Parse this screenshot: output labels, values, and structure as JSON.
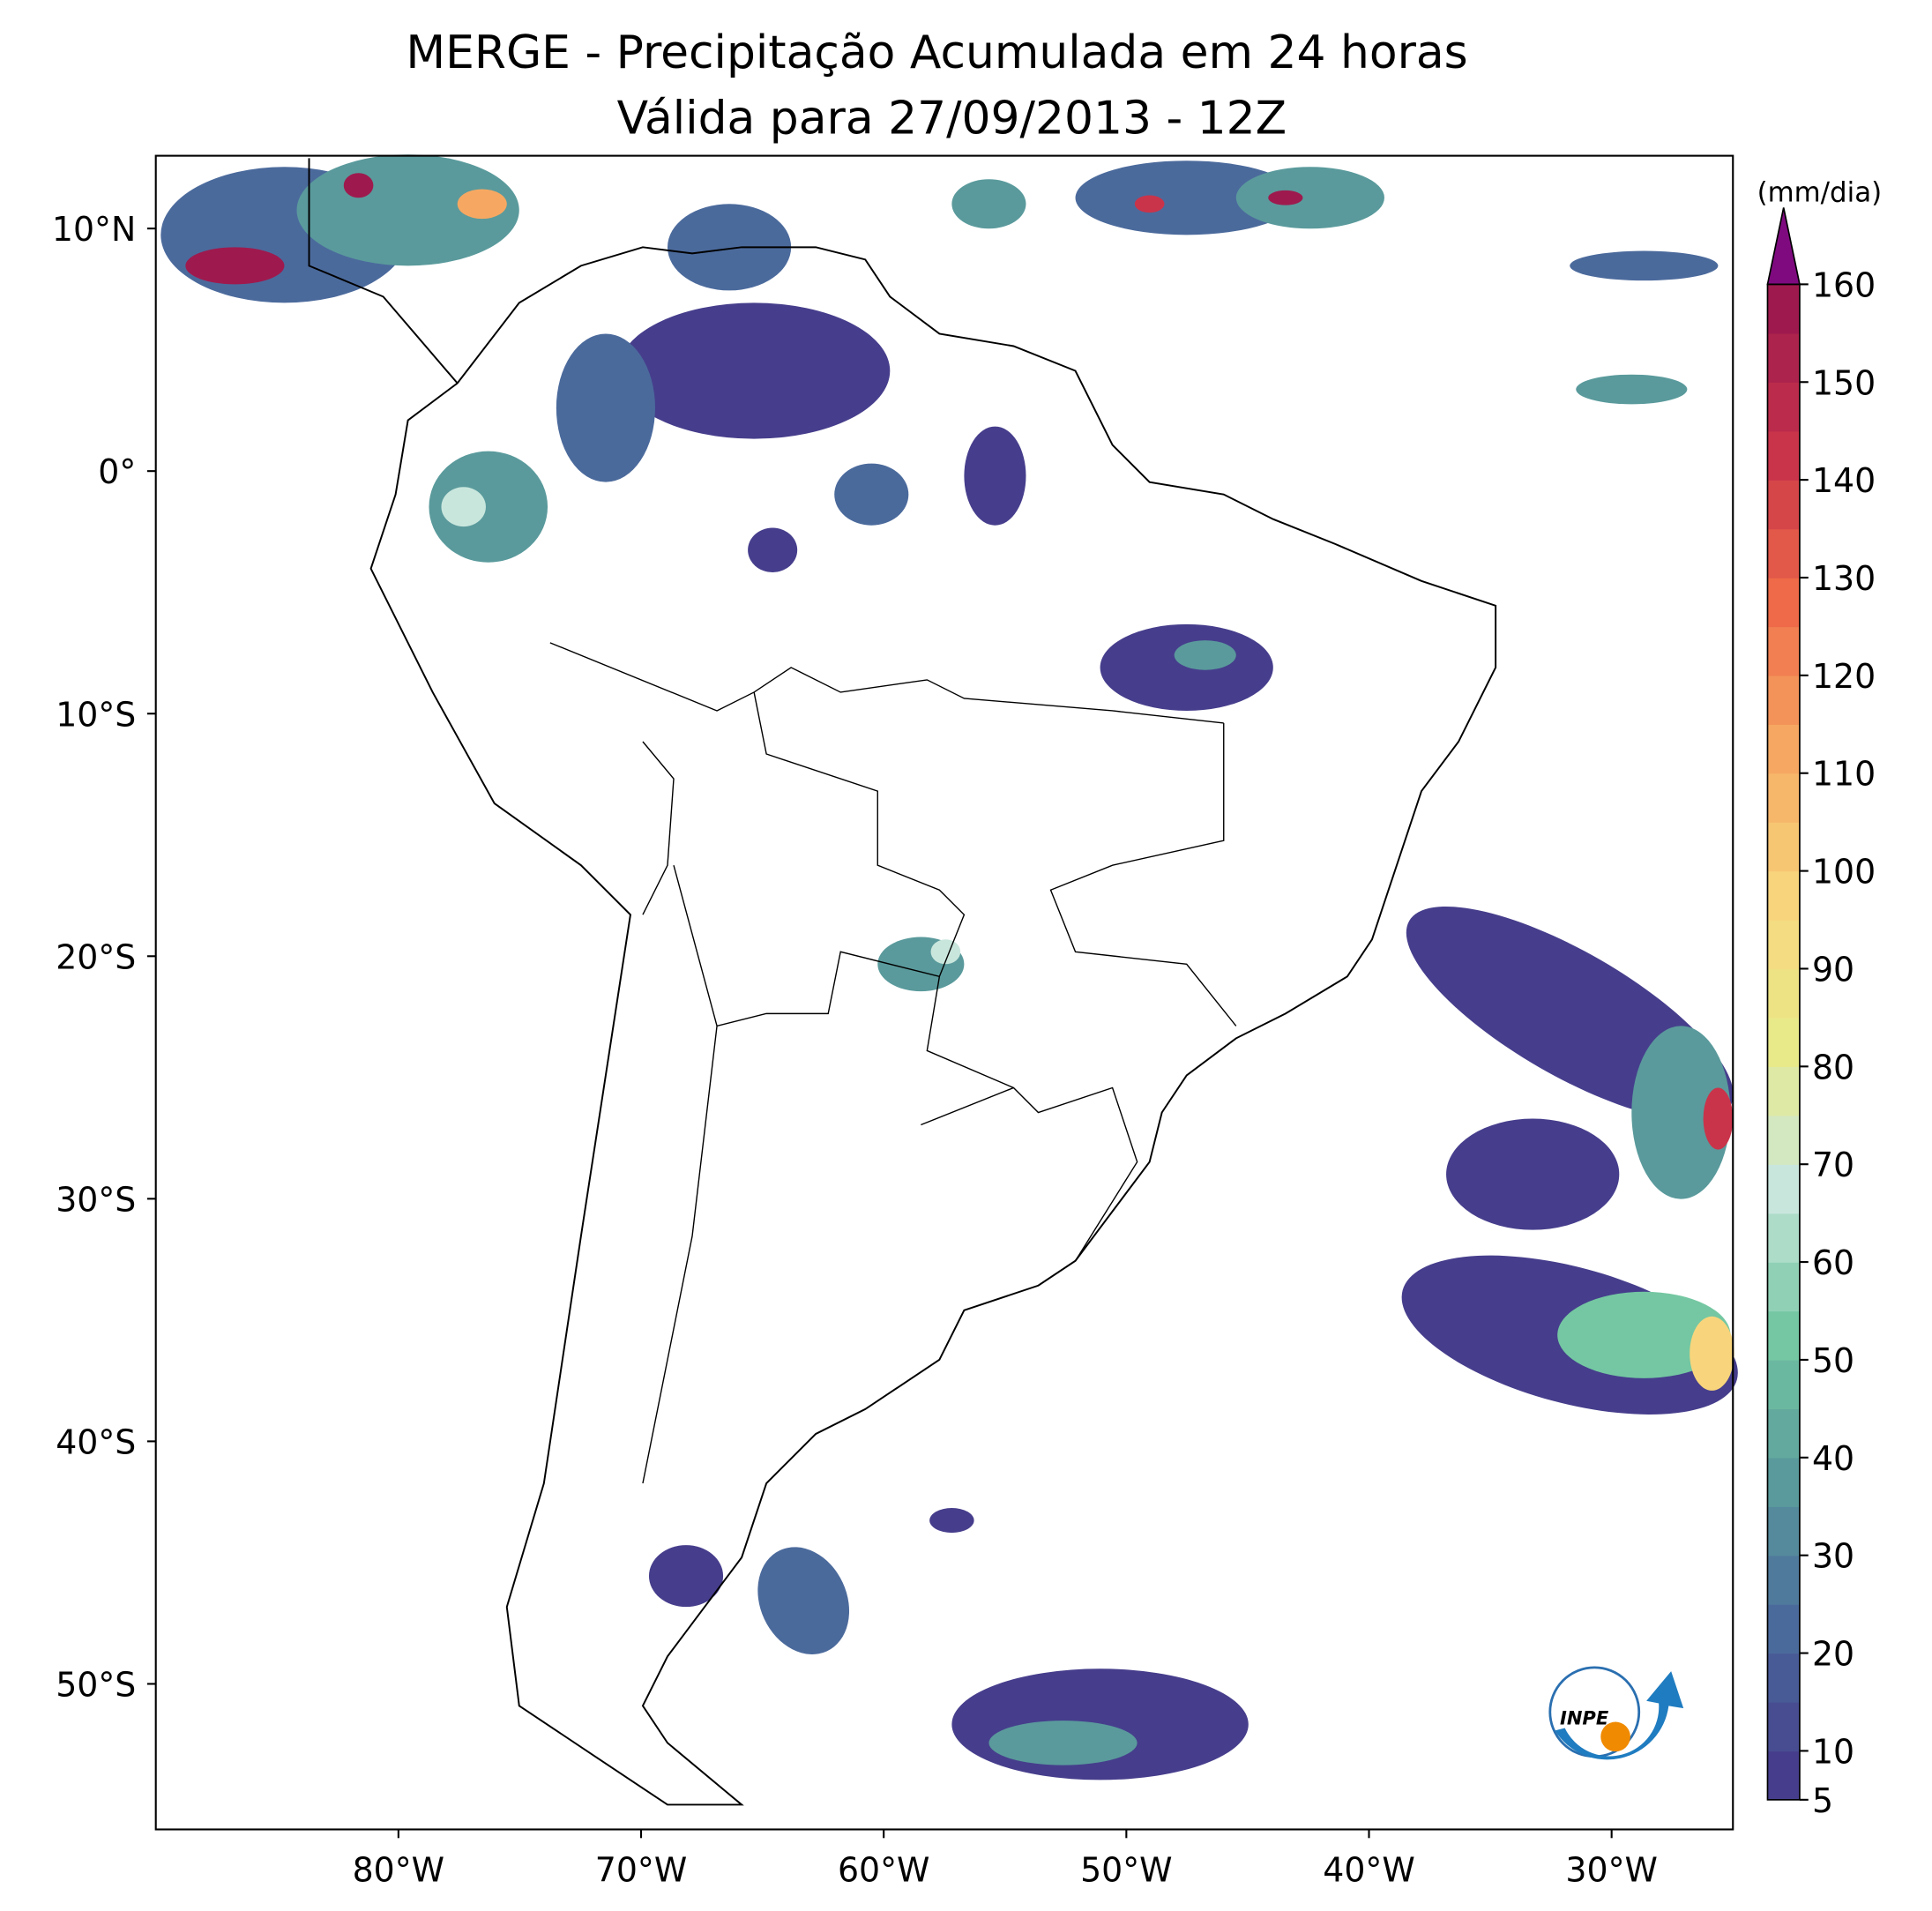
{
  "map": {
    "title": "MERGE - Precipitação Acumulada em 24 horas",
    "subtitle": "Válida para 27/09/2013 - 12Z",
    "xlim": [
      -90,
      -25
    ],
    "ylim": [
      -56,
      13
    ],
    "xticks": [
      {
        "value": -80,
        "label": "80°W"
      },
      {
        "value": -70,
        "label": "70°W"
      },
      {
        "value": -60,
        "label": "60°W"
      },
      {
        "value": -50,
        "label": "50°W"
      },
      {
        "value": -40,
        "label": "40°W"
      },
      {
        "value": -30,
        "label": "30°W"
      }
    ],
    "yticks": [
      {
        "value": 10,
        "label": "10°N"
      },
      {
        "value": 0,
        "label": "0°"
      },
      {
        "value": -10,
        "label": "10°S"
      },
      {
        "value": -20,
        "label": "20°S"
      },
      {
        "value": -30,
        "label": "30°S"
      },
      {
        "value": -40,
        "label": "40°S"
      },
      {
        "value": -50,
        "label": "50°S"
      }
    ],
    "colorbar": {
      "label": "(mm/dia)",
      "lim": [
        5,
        160
      ],
      "ticks": [
        5,
        10,
        20,
        30,
        40,
        50,
        60,
        70,
        80,
        90,
        100,
        110,
        120,
        130,
        140,
        150,
        160
      ],
      "levels": [
        5,
        10,
        15,
        20,
        25,
        30,
        35,
        40,
        45,
        50,
        55,
        60,
        65,
        70,
        75,
        80,
        85,
        90,
        95,
        100,
        105,
        110,
        115,
        120,
        125,
        130,
        135,
        140,
        145,
        150,
        155,
        160
      ],
      "cmap_colors": [
        "#463e8c",
        "#4b6a9c",
        "#5a9a9c",
        "#74c7a2",
        "#c9e6dd",
        "#e8ea8a",
        "#f8d57c",
        "#f6a862",
        "#ee6a48",
        "#c9344a",
        "#9e1a4e"
      ],
      "extend_color": "#7f0a7f"
    },
    "logo": "INPE"
  }
}
